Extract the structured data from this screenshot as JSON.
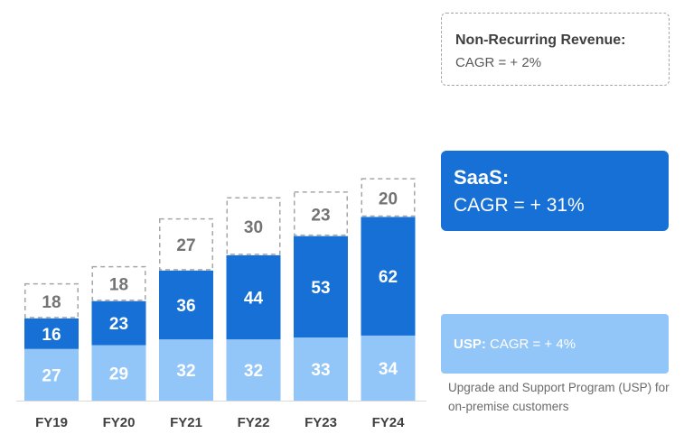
{
  "chart_data": {
    "type": "bar",
    "stacked": true,
    "categories": [
      "FY19",
      "FY20",
      "FY21",
      "FY22",
      "FY23",
      "FY24"
    ],
    "series": [
      {
        "name": "USP",
        "values": [
          27,
          29,
          32,
          32,
          33,
          34
        ],
        "color": "#92c5f8"
      },
      {
        "name": "SaaS",
        "values": [
          16,
          23,
          36,
          44,
          53,
          62
        ],
        "color": "#1670d6"
      },
      {
        "name": "Non-Recurring Revenue",
        "values": [
          18,
          18,
          27,
          30,
          23,
          20
        ],
        "color": "#ffffff"
      }
    ],
    "grid": false
  },
  "legend": {
    "non_recurring": {
      "title": "Non-Recurring Revenue:",
      "cagr": "CAGR = + 2%"
    },
    "saas": {
      "title": "SaaS:",
      "cagr": "CAGR = + 31%"
    },
    "usp": {
      "title": "USP:",
      "cagr": "CAGR = + 4%",
      "note": "Upgrade and Support Program (USP) for on-premise customers"
    }
  },
  "colors": {
    "usp": "#92c5f8",
    "saas": "#1670d6",
    "non_recurring_border": "#a6a6a6",
    "label_dark": "#737373",
    "axis_label": "#404040"
  }
}
